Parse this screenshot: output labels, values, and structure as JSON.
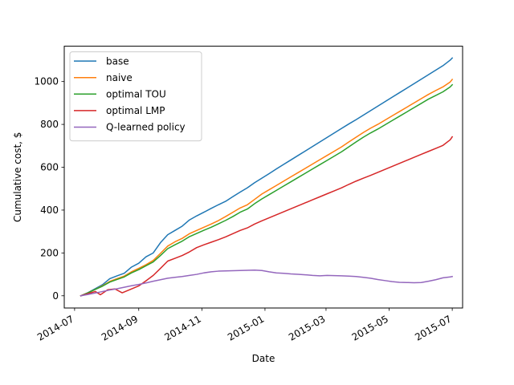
{
  "chart_data": {
    "type": "line",
    "xlabel": "Date",
    "ylabel": "Cumulative cost, $",
    "xlim": [
      "2014-06-21",
      "2015-07-11"
    ],
    "ylim": [
      -57,
      1165
    ],
    "x_ticks": [
      {
        "date": "2014-07-01",
        "label": "2014-07"
      },
      {
        "date": "2014-09-01",
        "label": "2014-09"
      },
      {
        "date": "2014-11-01",
        "label": "2014-11"
      },
      {
        "date": "2015-01-01",
        "label": "2015-01"
      },
      {
        "date": "2015-03-01",
        "label": "2015-03"
      },
      {
        "date": "2015-05-01",
        "label": "2015-05"
      },
      {
        "date": "2015-07-01",
        "label": "2015-07"
      }
    ],
    "y_ticks": [
      0,
      200,
      400,
      600,
      800,
      1000
    ],
    "grid": false,
    "legend_position": "upper-left",
    "series": [
      {
        "name": "base",
        "color": "#1f77b4",
        "points": [
          [
            "2014-07-07",
            0
          ],
          [
            "2014-07-14",
            15
          ],
          [
            "2014-07-21",
            33
          ],
          [
            "2014-07-28",
            52
          ],
          [
            "2014-08-04",
            80
          ],
          [
            "2014-08-11",
            93
          ],
          [
            "2014-08-18",
            105
          ],
          [
            "2014-08-25",
            134
          ],
          [
            "2014-09-01",
            152
          ],
          [
            "2014-09-08",
            182
          ],
          [
            "2014-09-15",
            200
          ],
          [
            "2014-09-22",
            248
          ],
          [
            "2014-09-29",
            285
          ],
          [
            "2014-10-06",
            305
          ],
          [
            "2014-10-13",
            325
          ],
          [
            "2014-10-20",
            354
          ],
          [
            "2014-10-27",
            373
          ],
          [
            "2014-11-03",
            390
          ],
          [
            "2014-11-10",
            408
          ],
          [
            "2014-11-17",
            425
          ],
          [
            "2014-11-24",
            441
          ],
          [
            "2014-12-01",
            463
          ],
          [
            "2014-12-08",
            484
          ],
          [
            "2014-12-15",
            504
          ],
          [
            "2014-12-22",
            528
          ],
          [
            "2014-12-29",
            549
          ],
          [
            "2015-01-05",
            570
          ],
          [
            "2015-01-12",
            592
          ],
          [
            "2015-01-19",
            613
          ],
          [
            "2015-01-26",
            634
          ],
          [
            "2015-02-02",
            655
          ],
          [
            "2015-02-09",
            676
          ],
          [
            "2015-02-16",
            697
          ],
          [
            "2015-02-23",
            718
          ],
          [
            "2015-03-02",
            739
          ],
          [
            "2015-03-09",
            760
          ],
          [
            "2015-03-16",
            781
          ],
          [
            "2015-03-23",
            802
          ],
          [
            "2015-03-30",
            822
          ],
          [
            "2015-04-06",
            843
          ],
          [
            "2015-04-13",
            864
          ],
          [
            "2015-04-20",
            885
          ],
          [
            "2015-04-27",
            906
          ],
          [
            "2015-05-04",
            927
          ],
          [
            "2015-05-11",
            948
          ],
          [
            "2015-05-18",
            969
          ],
          [
            "2015-05-25",
            990
          ],
          [
            "2015-06-01",
            1011
          ],
          [
            "2015-06-08",
            1032
          ],
          [
            "2015-06-15",
            1053
          ],
          [
            "2015-06-22",
            1074
          ],
          [
            "2015-06-29",
            1100
          ],
          [
            "2015-07-01",
            1110
          ]
        ]
      },
      {
        "name": "naive",
        "color": "#ff7f0e",
        "points": [
          [
            "2014-07-07",
            0
          ],
          [
            "2014-07-14",
            14
          ],
          [
            "2014-07-21",
            30
          ],
          [
            "2014-07-28",
            47
          ],
          [
            "2014-08-04",
            67
          ],
          [
            "2014-08-11",
            80
          ],
          [
            "2014-08-18",
            92
          ],
          [
            "2014-08-25",
            112
          ],
          [
            "2014-09-01",
            128
          ],
          [
            "2014-09-08",
            145
          ],
          [
            "2014-09-15",
            165
          ],
          [
            "2014-09-22",
            198
          ],
          [
            "2014-09-29",
            232
          ],
          [
            "2014-10-06",
            252
          ],
          [
            "2014-10-13",
            268
          ],
          [
            "2014-10-20",
            290
          ],
          [
            "2014-10-27",
            305
          ],
          [
            "2014-11-03",
            320
          ],
          [
            "2014-11-10",
            335
          ],
          [
            "2014-11-17",
            351
          ],
          [
            "2014-11-24",
            370
          ],
          [
            "2014-12-01",
            390
          ],
          [
            "2014-12-08",
            410
          ],
          [
            "2014-12-15",
            425
          ],
          [
            "2014-12-22",
            450
          ],
          [
            "2014-12-29",
            475
          ],
          [
            "2015-01-05",
            495
          ],
          [
            "2015-01-12",
            515
          ],
          [
            "2015-01-19",
            535
          ],
          [
            "2015-01-26",
            555
          ],
          [
            "2015-02-02",
            575
          ],
          [
            "2015-02-09",
            595
          ],
          [
            "2015-02-16",
            615
          ],
          [
            "2015-02-23",
            635
          ],
          [
            "2015-03-02",
            655
          ],
          [
            "2015-03-09",
            675
          ],
          [
            "2015-03-16",
            695
          ],
          [
            "2015-03-23",
            718
          ],
          [
            "2015-03-30",
            740
          ],
          [
            "2015-04-06",
            762
          ],
          [
            "2015-04-13",
            782
          ],
          [
            "2015-04-20",
            800
          ],
          [
            "2015-04-27",
            820
          ],
          [
            "2015-05-04",
            840
          ],
          [
            "2015-05-11",
            860
          ],
          [
            "2015-05-18",
            880
          ],
          [
            "2015-05-25",
            900
          ],
          [
            "2015-06-01",
            920
          ],
          [
            "2015-06-08",
            940
          ],
          [
            "2015-06-15",
            958
          ],
          [
            "2015-06-22",
            975
          ],
          [
            "2015-06-29",
            998
          ],
          [
            "2015-07-01",
            1010
          ]
        ]
      },
      {
        "name": "optimal TOU",
        "color": "#2ca02c",
        "points": [
          [
            "2014-07-07",
            0
          ],
          [
            "2014-07-14",
            14
          ],
          [
            "2014-07-21",
            30
          ],
          [
            "2014-07-28",
            45
          ],
          [
            "2014-08-04",
            64
          ],
          [
            "2014-08-11",
            76
          ],
          [
            "2014-08-18",
            88
          ],
          [
            "2014-08-25",
            107
          ],
          [
            "2014-09-01",
            122
          ],
          [
            "2014-09-08",
            140
          ],
          [
            "2014-09-15",
            158
          ],
          [
            "2014-09-22",
            188
          ],
          [
            "2014-09-29",
            220
          ],
          [
            "2014-10-06",
            238
          ],
          [
            "2014-10-13",
            255
          ],
          [
            "2014-10-20",
            276
          ],
          [
            "2014-10-27",
            291
          ],
          [
            "2014-11-03",
            306
          ],
          [
            "2014-11-10",
            320
          ],
          [
            "2014-11-17",
            336
          ],
          [
            "2014-11-24",
            352
          ],
          [
            "2014-12-01",
            370
          ],
          [
            "2014-12-08",
            390
          ],
          [
            "2014-12-15",
            405
          ],
          [
            "2014-12-22",
            430
          ],
          [
            "2014-12-29",
            452
          ],
          [
            "2015-01-05",
            472
          ],
          [
            "2015-01-12",
            492
          ],
          [
            "2015-01-19",
            512
          ],
          [
            "2015-01-26",
            532
          ],
          [
            "2015-02-02",
            552
          ],
          [
            "2015-02-09",
            572
          ],
          [
            "2015-02-16",
            592
          ],
          [
            "2015-02-23",
            612
          ],
          [
            "2015-03-02",
            632
          ],
          [
            "2015-03-09",
            652
          ],
          [
            "2015-03-16",
            672
          ],
          [
            "2015-03-23",
            695
          ],
          [
            "2015-03-30",
            718
          ],
          [
            "2015-04-06",
            740
          ],
          [
            "2015-04-13",
            760
          ],
          [
            "2015-04-20",
            778
          ],
          [
            "2015-04-27",
            798
          ],
          [
            "2015-05-04",
            818
          ],
          [
            "2015-05-11",
            838
          ],
          [
            "2015-05-18",
            858
          ],
          [
            "2015-05-25",
            878
          ],
          [
            "2015-06-01",
            898
          ],
          [
            "2015-06-08",
            918
          ],
          [
            "2015-06-15",
            935
          ],
          [
            "2015-06-22",
            952
          ],
          [
            "2015-06-29",
            975
          ],
          [
            "2015-07-01",
            985
          ]
        ]
      },
      {
        "name": "optimal LMP",
        "color": "#d62728",
        "points": [
          [
            "2014-07-07",
            0
          ],
          [
            "2014-07-14",
            10
          ],
          [
            "2014-07-21",
            20
          ],
          [
            "2014-07-26",
            5
          ],
          [
            "2014-08-02",
            28
          ],
          [
            "2014-08-09",
            32
          ],
          [
            "2014-08-16",
            14
          ],
          [
            "2014-08-23",
            28
          ],
          [
            "2014-09-01",
            46
          ],
          [
            "2014-09-08",
            70
          ],
          [
            "2014-09-15",
            95
          ],
          [
            "2014-09-22",
            128
          ],
          [
            "2014-09-29",
            162
          ],
          [
            "2014-10-06",
            175
          ],
          [
            "2014-10-13",
            188
          ],
          [
            "2014-10-20",
            205
          ],
          [
            "2014-10-27",
            225
          ],
          [
            "2014-11-03",
            238
          ],
          [
            "2014-11-10",
            250
          ],
          [
            "2014-11-17",
            262
          ],
          [
            "2014-11-24",
            275
          ],
          [
            "2014-12-01",
            290
          ],
          [
            "2014-12-08",
            305
          ],
          [
            "2014-12-15",
            317
          ],
          [
            "2014-12-22",
            335
          ],
          [
            "2014-12-29",
            350
          ],
          [
            "2015-01-05",
            364
          ],
          [
            "2015-01-12",
            378
          ],
          [
            "2015-01-19",
            392
          ],
          [
            "2015-01-26",
            406
          ],
          [
            "2015-02-02",
            420
          ],
          [
            "2015-02-09",
            434
          ],
          [
            "2015-02-16",
            448
          ],
          [
            "2015-02-23",
            462
          ],
          [
            "2015-03-02",
            476
          ],
          [
            "2015-03-09",
            490
          ],
          [
            "2015-03-16",
            504
          ],
          [
            "2015-03-23",
            520
          ],
          [
            "2015-03-30",
            535
          ],
          [
            "2015-04-06",
            549
          ],
          [
            "2015-04-13",
            562
          ],
          [
            "2015-04-20",
            576
          ],
          [
            "2015-04-27",
            590
          ],
          [
            "2015-05-04",
            604
          ],
          [
            "2015-05-11",
            618
          ],
          [
            "2015-05-18",
            632
          ],
          [
            "2015-05-25",
            646
          ],
          [
            "2015-06-01",
            660
          ],
          [
            "2015-06-08",
            674
          ],
          [
            "2015-06-15",
            688
          ],
          [
            "2015-06-22",
            702
          ],
          [
            "2015-06-29",
            728
          ],
          [
            "2015-07-01",
            742
          ]
        ]
      },
      {
        "name": "Q-learned policy",
        "color": "#9467bd",
        "points": [
          [
            "2014-07-07",
            0
          ],
          [
            "2014-07-14",
            6
          ],
          [
            "2014-07-21",
            13
          ],
          [
            "2014-07-28",
            20
          ],
          [
            "2014-08-04",
            27
          ],
          [
            "2014-08-11",
            33
          ],
          [
            "2014-08-18",
            40
          ],
          [
            "2014-08-25",
            47
          ],
          [
            "2014-09-01",
            53
          ],
          [
            "2014-09-08",
            60
          ],
          [
            "2014-09-15",
            68
          ],
          [
            "2014-09-22",
            75
          ],
          [
            "2014-09-29",
            82
          ],
          [
            "2014-10-06",
            86
          ],
          [
            "2014-10-13",
            90
          ],
          [
            "2014-10-20",
            95
          ],
          [
            "2014-10-27",
            100
          ],
          [
            "2014-11-03",
            107
          ],
          [
            "2014-11-10",
            112
          ],
          [
            "2014-11-17",
            115
          ],
          [
            "2014-11-24",
            116
          ],
          [
            "2014-12-01",
            117
          ],
          [
            "2014-12-08",
            118
          ],
          [
            "2014-12-15",
            119
          ],
          [
            "2014-12-22",
            120
          ],
          [
            "2014-12-29",
            118
          ],
          [
            "2015-01-05",
            112
          ],
          [
            "2015-01-12",
            107
          ],
          [
            "2015-01-19",
            105
          ],
          [
            "2015-01-26",
            102
          ],
          [
            "2015-02-02",
            100
          ],
          [
            "2015-02-09",
            98
          ],
          [
            "2015-02-16",
            95
          ],
          [
            "2015-02-23",
            93
          ],
          [
            "2015-03-02",
            95
          ],
          [
            "2015-03-09",
            94
          ],
          [
            "2015-03-16",
            93
          ],
          [
            "2015-03-23",
            92
          ],
          [
            "2015-03-30",
            90
          ],
          [
            "2015-04-06",
            86
          ],
          [
            "2015-04-13",
            82
          ],
          [
            "2015-04-20",
            76
          ],
          [
            "2015-04-27",
            71
          ],
          [
            "2015-05-04",
            66
          ],
          [
            "2015-05-11",
            63
          ],
          [
            "2015-05-18",
            62
          ],
          [
            "2015-05-25",
            61
          ],
          [
            "2015-06-01",
            62
          ],
          [
            "2015-06-08",
            68
          ],
          [
            "2015-06-15",
            75
          ],
          [
            "2015-06-22",
            84
          ],
          [
            "2015-06-29",
            88
          ],
          [
            "2015-07-01",
            90
          ]
        ]
      }
    ]
  }
}
